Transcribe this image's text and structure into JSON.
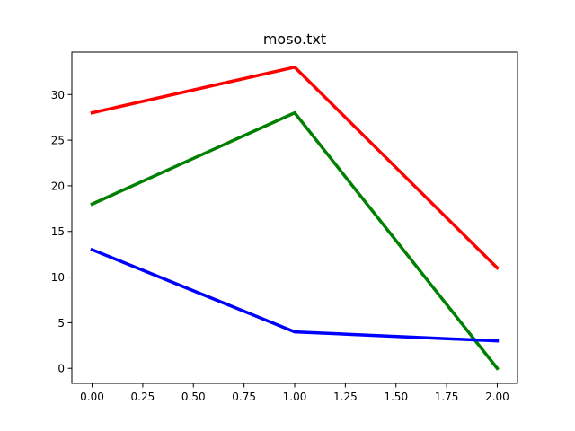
{
  "chart_data": {
    "type": "line",
    "title": "moso.txt",
    "xlabel": "",
    "ylabel": "",
    "x": [
      0,
      1,
      2
    ],
    "xlim": [
      -0.1,
      2.1
    ],
    "ylim": [
      -1.65,
      34.65
    ],
    "x_ticks": [
      0.0,
      0.25,
      0.5,
      0.75,
      1.0,
      1.25,
      1.5,
      1.75,
      2.0
    ],
    "x_tick_labels": [
      "0.00",
      "0.25",
      "0.50",
      "0.75",
      "1.00",
      "1.25",
      "1.50",
      "1.75",
      "2.00"
    ],
    "y_ticks": [
      0,
      5,
      10,
      15,
      20,
      25,
      30
    ],
    "y_tick_labels": [
      "0",
      "5",
      "10",
      "15",
      "20",
      "25",
      "30"
    ],
    "grid": false,
    "legend": "none",
    "series": [
      {
        "color": "#ff0000",
        "values": [
          28,
          33,
          11
        ]
      },
      {
        "color": "#008000",
        "values": [
          18,
          28,
          0
        ]
      },
      {
        "color": "#0000ff",
        "values": [
          13,
          4,
          3
        ]
      }
    ]
  }
}
